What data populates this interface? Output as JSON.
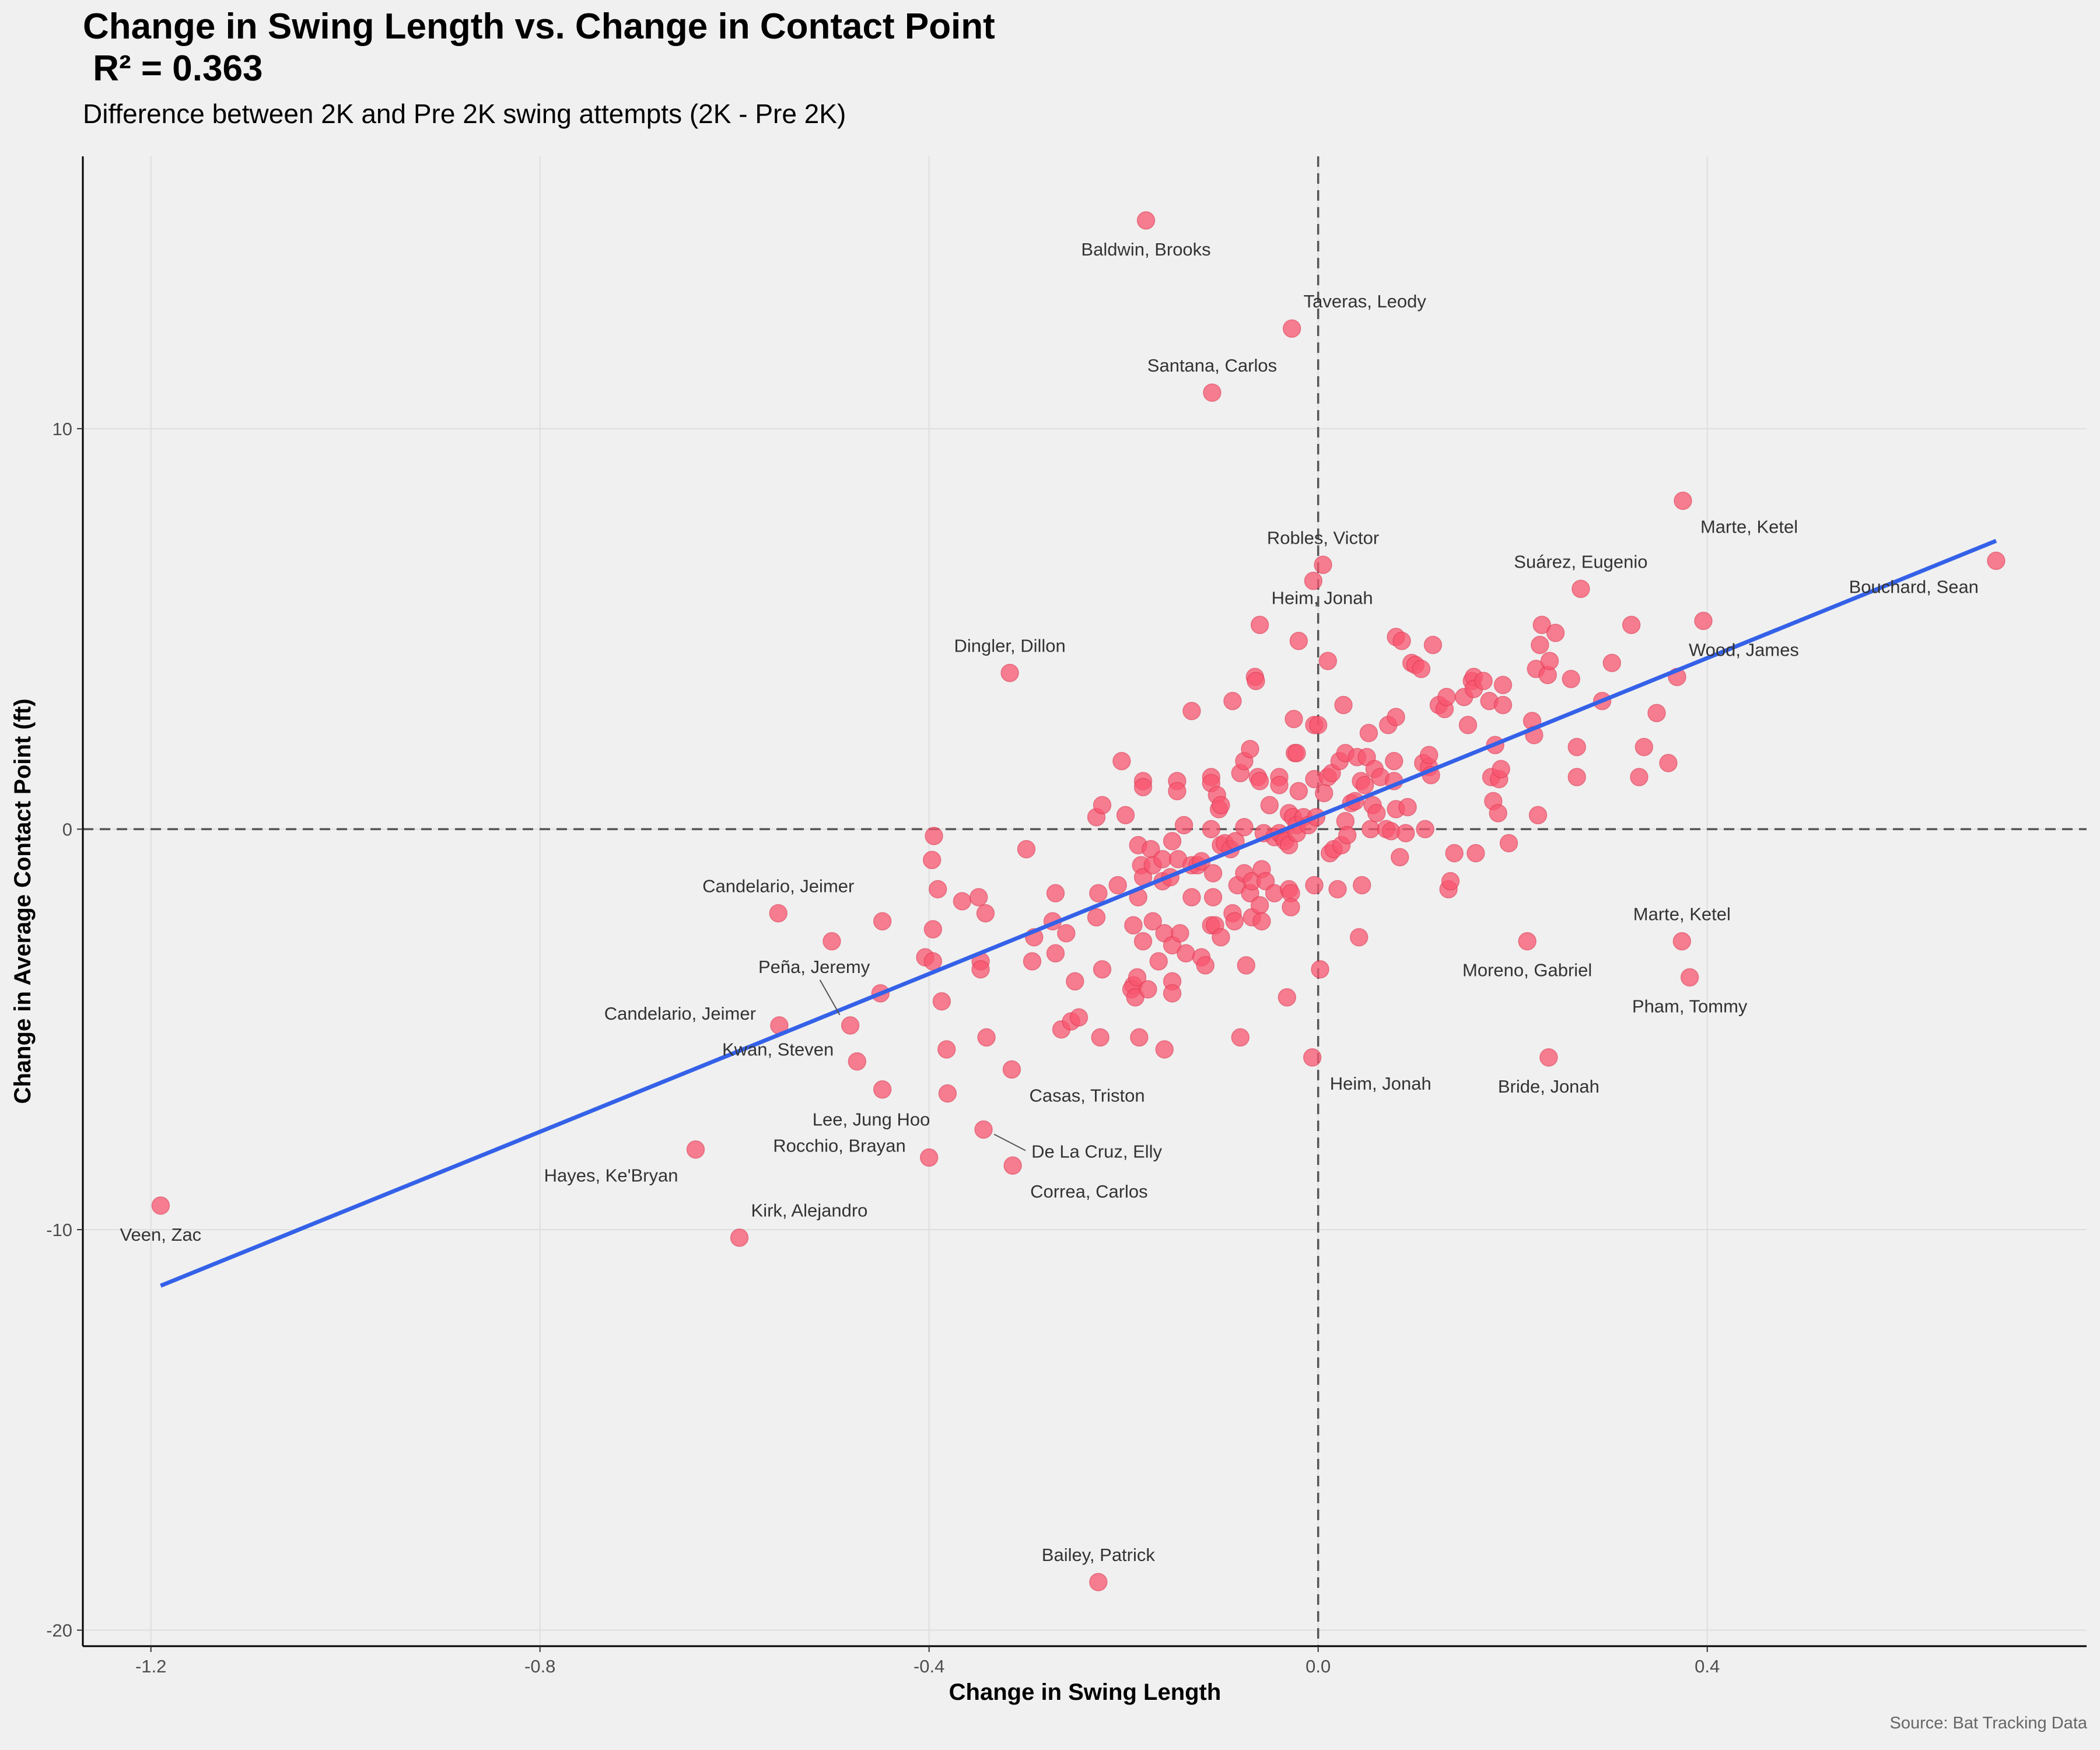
{
  "chart_data": {
    "type": "scatter",
    "title": "Change in Swing Length vs. Change in Contact Point\n R² = 0.363",
    "subtitle": "Difference between 2K and Pre 2K swing attempts (2K - Pre 2K)",
    "xlabel": "Change in Swing Length",
    "ylabel": "Change in Average Contact Point (ft)",
    "caption": "Source: Bat Tracking Data",
    "xlim": [
      -1.27,
      0.79
    ],
    "ylim": [
      -20.4,
      16.8
    ],
    "x_ticks": [
      -1.2,
      -0.8,
      -0.4,
      0.0,
      0.4
    ],
    "x_tick_labels": [
      "-1.2",
      "-0.8",
      "-0.4",
      "0.0",
      "0.4"
    ],
    "y_ticks": [
      -20,
      -10,
      0,
      10
    ],
    "y_tick_labels": [
      "-20",
      "-10",
      "0",
      "10"
    ],
    "reference_lines": {
      "x": 0,
      "y": 0,
      "style": "dashed"
    },
    "trend_line": {
      "x": [
        -1.19,
        0.697
      ],
      "y": [
        -11.4,
        7.2
      ],
      "color": "#3461e8"
    },
    "point_color": "#f8556f",
    "labeled_points": [
      {
        "name": "Baldwin, Brooks",
        "x": -0.177,
        "y": 15.2,
        "anchor": "below"
      },
      {
        "name": "Taveras, Leody",
        "x": -0.027,
        "y": 12.5,
        "anchor": "above-right"
      },
      {
        "name": "Santana, Carlos",
        "x": -0.109,
        "y": 10.9,
        "anchor": "above"
      },
      {
        "name": "Marte, Ketel",
        "x": 0.375,
        "y": 8.2,
        "anchor": "below-right"
      },
      {
        "name": "Robles, Victor",
        "x": 0.005,
        "y": 6.6,
        "anchor": "above"
      },
      {
        "name": "Suárez, Eugenio",
        "x": 0.27,
        "y": 6.0,
        "anchor": "above"
      },
      {
        "name": "Bouchard, Sean",
        "x": 0.697,
        "y": 6.7,
        "anchor": "below-left"
      },
      {
        "name": "Heim, Jonah",
        "x": -0.06,
        "y": 5.1,
        "anchor": "above-right"
      },
      {
        "name": "Wood, James",
        "x": 0.369,
        "y": 3.8,
        "anchor": "above-right"
      },
      {
        "name": "Dingler, Dillon",
        "x": -0.317,
        "y": 3.9,
        "anchor": "above"
      },
      {
        "name": "Candelario, Jeimer",
        "x": -0.555,
        "y": -2.1,
        "anchor": "above"
      },
      {
        "name": "Marte, Ketel",
        "x": 0.374,
        "y": -2.8,
        "anchor": "above"
      },
      {
        "name": "Moreno, Gabriel",
        "x": 0.215,
        "y": -2.8,
        "anchor": "below"
      },
      {
        "name": "Peña, Jeremy",
        "x": -0.481,
        "y": -4.9,
        "anchor": "leader-above-left"
      },
      {
        "name": "Pham, Tommy",
        "x": 0.382,
        "y": -3.7,
        "anchor": "below"
      },
      {
        "name": "Candelario, Jeimer",
        "x": -0.554,
        "y": -4.9,
        "anchor": "left"
      },
      {
        "name": "Kwan, Steven",
        "x": -0.474,
        "y": -5.8,
        "anchor": "left"
      },
      {
        "name": "Bride, Jonah",
        "x": 0.237,
        "y": -5.7,
        "anchor": "below"
      },
      {
        "name": "Heim, Jonah",
        "x": -0.006,
        "y": -5.7,
        "anchor": "below-right"
      },
      {
        "name": "Casas, Triston",
        "x": -0.315,
        "y": -6.0,
        "anchor": "below-right"
      },
      {
        "name": "Lee, Jung Hoo",
        "x": -0.381,
        "y": -6.6,
        "anchor": "below-left"
      },
      {
        "name": "De La Cruz, Elly",
        "x": -0.344,
        "y": -7.5,
        "anchor": "leader-right"
      },
      {
        "name": "Hayes, Ke'Bryan",
        "x": -0.64,
        "y": -8.0,
        "anchor": "below-left"
      },
      {
        "name": "Rocchio, Brayan",
        "x": -0.4,
        "y": -8.2,
        "anchor": "left"
      },
      {
        "name": "Correa, Carlos",
        "x": -0.314,
        "y": -8.4,
        "anchor": "below-right"
      },
      {
        "name": "Veen, Zac",
        "x": -1.19,
        "y": -9.4,
        "anchor": "below"
      },
      {
        "name": "Kirk, Alejandro",
        "x": -0.595,
        "y": -10.2,
        "anchor": "above-right"
      },
      {
        "name": "Bailey, Patrick",
        "x": -0.226,
        "y": -18.8,
        "anchor": "above"
      }
    ],
    "points": [
      {
        "x": -0.395,
        "y": -0.17
      },
      {
        "x": -0.397,
        "y": -0.77
      },
      {
        "x": -0.391,
        "y": -1.5
      },
      {
        "x": -0.366,
        "y": -1.8
      },
      {
        "x": -0.349,
        "y": -1.7
      },
      {
        "x": -0.342,
        "y": -2.1
      },
      {
        "x": -0.396,
        "y": -2.5
      },
      {
        "x": -0.404,
        "y": -3.2
      },
      {
        "x": -0.396,
        "y": -3.3
      },
      {
        "x": -0.347,
        "y": -3.3
      },
      {
        "x": -0.347,
        "y": -3.5
      },
      {
        "x": -0.387,
        "y": -4.3
      },
      {
        "x": -0.382,
        "y": -5.5
      },
      {
        "x": -0.341,
        "y": -5.2
      },
      {
        "x": -0.448,
        "y": -2.3
      },
      {
        "x": -0.5,
        "y": -2.8
      },
      {
        "x": -0.45,
        "y": -4.1
      },
      {
        "x": -0.448,
        "y": -6.5
      },
      {
        "x": -0.3,
        "y": -0.5
      },
      {
        "x": -0.292,
        "y": -2.7
      },
      {
        "x": -0.294,
        "y": -3.3
      },
      {
        "x": -0.27,
        "y": -1.6
      },
      {
        "x": -0.273,
        "y": -2.3
      },
      {
        "x": -0.27,
        "y": -3.1
      },
      {
        "x": -0.259,
        "y": -2.6
      },
      {
        "x": -0.25,
        "y": -3.8
      },
      {
        "x": -0.264,
        "y": -5.0
      },
      {
        "x": -0.254,
        "y": -4.8
      },
      {
        "x": -0.246,
        "y": -4.7
      },
      {
        "x": -0.228,
        "y": 0.3
      },
      {
        "x": -0.222,
        "y": 0.6
      },
      {
        "x": -0.226,
        "y": -1.6
      },
      {
        "x": -0.228,
        "y": -2.2
      },
      {
        "x": -0.222,
        "y": -3.5
      },
      {
        "x": -0.224,
        "y": -5.2
      },
      {
        "x": -0.206,
        "y": -1.4
      },
      {
        "x": -0.198,
        "y": 0.35
      },
      {
        "x": -0.202,
        "y": 1.7
      },
      {
        "x": -0.19,
        "y": -2.4
      },
      {
        "x": -0.19,
        "y": -3.9
      },
      {
        "x": -0.192,
        "y": -4.0
      },
      {
        "x": -0.186,
        "y": -3.7
      },
      {
        "x": -0.188,
        "y": -4.2
      },
      {
        "x": -0.185,
        "y": -0.4
      },
      {
        "x": -0.185,
        "y": -1.7
      },
      {
        "x": -0.184,
        "y": -5.2
      },
      {
        "x": -0.18,
        "y": 1.2
      },
      {
        "x": -0.18,
        "y": 1.05
      },
      {
        "x": -0.182,
        "y": -0.9
      },
      {
        "x": -0.18,
        "y": -1.2
      },
      {
        "x": -0.18,
        "y": -2.8
      },
      {
        "x": -0.172,
        "y": -0.5
      },
      {
        "x": -0.17,
        "y": -0.9
      },
      {
        "x": -0.17,
        "y": -2.3
      },
      {
        "x": -0.175,
        "y": -4.0
      },
      {
        "x": -0.164,
        "y": -3.3
      },
      {
        "x": -0.16,
        "y": -1.3
      },
      {
        "x": -0.16,
        "y": -0.75
      },
      {
        "x": -0.158,
        "y": -2.6
      },
      {
        "x": -0.158,
        "y": -5.5
      },
      {
        "x": -0.15,
        "y": -0.3
      },
      {
        "x": -0.152,
        "y": -1.2
      },
      {
        "x": -0.15,
        "y": -2.9
      },
      {
        "x": -0.15,
        "y": -3.8
      },
      {
        "x": -0.15,
        "y": -4.1
      },
      {
        "x": -0.145,
        "y": 1.2
      },
      {
        "x": -0.145,
        "y": 0.95
      },
      {
        "x": -0.144,
        "y": -0.75
      },
      {
        "x": -0.142,
        "y": -2.6
      },
      {
        "x": -0.138,
        "y": 0.1
      },
      {
        "x": -0.136,
        "y": -3.1
      },
      {
        "x": -0.13,
        "y": 2.95
      },
      {
        "x": -0.13,
        "y": -0.9
      },
      {
        "x": -0.13,
        "y": -1.7
      },
      {
        "x": -0.124,
        "y": -0.9
      },
      {
        "x": -0.12,
        "y": -0.8
      },
      {
        "x": -0.12,
        "y": -3.2
      },
      {
        "x": -0.116,
        "y": -3.4
      },
      {
        "x": -0.11,
        "y": 1.3
      },
      {
        "x": -0.11,
        "y": 1.15
      },
      {
        "x": -0.11,
        "y": 0.0
      },
      {
        "x": -0.108,
        "y": -1.1
      },
      {
        "x": -0.108,
        "y": -1.7
      },
      {
        "x": -0.11,
        "y": -2.4
      },
      {
        "x": -0.106,
        "y": -2.4
      },
      {
        "x": -0.104,
        "y": 0.85
      },
      {
        "x": -0.102,
        "y": 0.5
      },
      {
        "x": -0.1,
        "y": 0.6
      },
      {
        "x": -0.1,
        "y": -0.4
      },
      {
        "x": -0.096,
        "y": -0.35
      },
      {
        "x": -0.1,
        "y": -2.7
      },
      {
        "x": -0.09,
        "y": -0.5
      },
      {
        "x": -0.088,
        "y": 3.2
      },
      {
        "x": -0.088,
        "y": -2.1
      },
      {
        "x": -0.086,
        "y": -2.3
      },
      {
        "x": -0.085,
        "y": -0.3
      },
      {
        "x": -0.083,
        "y": -1.4
      },
      {
        "x": -0.08,
        "y": 1.4
      },
      {
        "x": -0.08,
        "y": -5.2
      },
      {
        "x": -0.076,
        "y": 1.7
      },
      {
        "x": -0.076,
        "y": 0.05
      },
      {
        "x": -0.076,
        "y": -1.1
      },
      {
        "x": -0.074,
        "y": -3.4
      },
      {
        "x": -0.07,
        "y": 2.0
      },
      {
        "x": -0.07,
        "y": -1.6
      },
      {
        "x": -0.068,
        "y": -1.3
      },
      {
        "x": -0.068,
        "y": -2.2
      },
      {
        "x": -0.065,
        "y": 3.8
      },
      {
        "x": -0.064,
        "y": 3.7
      },
      {
        "x": -0.062,
        "y": 1.3
      },
      {
        "x": -0.06,
        "y": 1.2
      },
      {
        "x": -0.06,
        "y": -1.9
      },
      {
        "x": -0.058,
        "y": -1.0
      },
      {
        "x": -0.058,
        "y": -2.3
      },
      {
        "x": -0.056,
        "y": -0.1
      },
      {
        "x": -0.054,
        "y": -1.3
      },
      {
        "x": -0.05,
        "y": 0.6
      },
      {
        "x": -0.045,
        "y": -0.2
      },
      {
        "x": -0.045,
        "y": -1.6
      },
      {
        "x": -0.04,
        "y": 1.3
      },
      {
        "x": -0.04,
        "y": 1.1
      },
      {
        "x": -0.04,
        "y": -0.1
      },
      {
        "x": -0.036,
        "y": -0.2
      },
      {
        "x": -0.034,
        "y": -0.3
      },
      {
        "x": -0.032,
        "y": -4.2
      },
      {
        "x": -0.03,
        "y": 0.4
      },
      {
        "x": -0.03,
        "y": -0.4
      },
      {
        "x": -0.03,
        "y": -1.5
      },
      {
        "x": -0.028,
        "y": -1.6
      },
      {
        "x": -0.028,
        "y": -1.95
      },
      {
        "x": -0.026,
        "y": 0.3
      },
      {
        "x": -0.025,
        "y": 2.75
      },
      {
        "x": -0.024,
        "y": 1.9
      },
      {
        "x": -0.022,
        "y": 1.9
      },
      {
        "x": -0.022,
        "y": 0.1
      },
      {
        "x": -0.022,
        "y": -0.1
      },
      {
        "x": -0.02,
        "y": 4.7
      },
      {
        "x": -0.02,
        "y": 0.95
      },
      {
        "x": -0.015,
        "y": 0.3
      },
      {
        "x": -0.01,
        "y": 0.1
      },
      {
        "x": -0.005,
        "y": 6.2
      },
      {
        "x": -0.004,
        "y": 2.6
      },
      {
        "x": -0.004,
        "y": 1.25
      },
      {
        "x": -0.004,
        "y": -1.4
      },
      {
        "x": -0.002,
        "y": 0.3
      },
      {
        "x": 0.0,
        "y": 2.6
      },
      {
        "x": 0.002,
        "y": -3.5
      },
      {
        "x": 0.006,
        "y": 0.9
      },
      {
        "x": 0.01,
        "y": 4.2
      },
      {
        "x": 0.01,
        "y": 1.3
      },
      {
        "x": 0.012,
        "y": -0.6
      },
      {
        "x": 0.014,
        "y": 1.4
      },
      {
        "x": 0.016,
        "y": -0.5
      },
      {
        "x": 0.02,
        "y": -1.5
      },
      {
        "x": 0.022,
        "y": 1.7
      },
      {
        "x": 0.024,
        "y": -0.4
      },
      {
        "x": 0.026,
        "y": 3.1
      },
      {
        "x": 0.028,
        "y": 1.9
      },
      {
        "x": 0.028,
        "y": 0.2
      },
      {
        "x": 0.03,
        "y": -0.15
      },
      {
        "x": 0.034,
        "y": 0.65
      },
      {
        "x": 0.038,
        "y": 0.7
      },
      {
        "x": 0.04,
        "y": 1.8
      },
      {
        "x": 0.042,
        "y": -2.7
      },
      {
        "x": 0.044,
        "y": 1.2
      },
      {
        "x": 0.045,
        "y": -1.4
      },
      {
        "x": 0.048,
        "y": 1.1
      },
      {
        "x": 0.05,
        "y": 1.8
      },
      {
        "x": 0.052,
        "y": 2.4
      },
      {
        "x": 0.054,
        "y": 0.0
      },
      {
        "x": 0.056,
        "y": 0.6
      },
      {
        "x": 0.058,
        "y": 1.5
      },
      {
        "x": 0.06,
        "y": 0.4
      },
      {
        "x": 0.064,
        "y": 1.3
      },
      {
        "x": 0.07,
        "y": 0.0
      },
      {
        "x": 0.072,
        "y": 2.6
      },
      {
        "x": 0.075,
        "y": -0.05
      },
      {
        "x": 0.078,
        "y": 1.7
      },
      {
        "x": 0.078,
        "y": 1.2
      },
      {
        "x": 0.08,
        "y": 2.8
      },
      {
        "x": 0.08,
        "y": 4.8
      },
      {
        "x": 0.08,
        "y": 0.5
      },
      {
        "x": 0.084,
        "y": -0.7
      },
      {
        "x": 0.086,
        "y": 4.7
      },
      {
        "x": 0.09,
        "y": -0.1
      },
      {
        "x": 0.092,
        "y": 0.55
      },
      {
        "x": 0.096,
        "y": 4.15
      },
      {
        "x": 0.1,
        "y": 4.1
      },
      {
        "x": 0.106,
        "y": 4.0
      },
      {
        "x": 0.108,
        "y": 1.65
      },
      {
        "x": 0.11,
        "y": 0.0
      },
      {
        "x": 0.114,
        "y": 1.55
      },
      {
        "x": 0.114,
        "y": 1.85
      },
      {
        "x": 0.116,
        "y": 1.35
      },
      {
        "x": 0.118,
        "y": 4.6
      },
      {
        "x": 0.124,
        "y": 3.1
      },
      {
        "x": 0.13,
        "y": 3.0
      },
      {
        "x": 0.132,
        "y": 3.3
      },
      {
        "x": 0.134,
        "y": -1.5
      },
      {
        "x": 0.136,
        "y": -1.3
      },
      {
        "x": 0.14,
        "y": -0.6
      },
      {
        "x": 0.15,
        "y": 3.3
      },
      {
        "x": 0.154,
        "y": 2.6
      },
      {
        "x": 0.158,
        "y": 3.7
      },
      {
        "x": 0.16,
        "y": 3.8
      },
      {
        "x": 0.16,
        "y": 3.5
      },
      {
        "x": 0.162,
        "y": -0.6
      },
      {
        "x": 0.17,
        "y": 3.7
      },
      {
        "x": 0.176,
        "y": 3.2
      },
      {
        "x": 0.178,
        "y": 1.3
      },
      {
        "x": 0.18,
        "y": 0.7
      },
      {
        "x": 0.182,
        "y": 2.1
      },
      {
        "x": 0.185,
        "y": 0.4
      },
      {
        "x": 0.186,
        "y": 1.25
      },
      {
        "x": 0.188,
        "y": 1.5
      },
      {
        "x": 0.19,
        "y": 3.1
      },
      {
        "x": 0.19,
        "y": 3.6
      },
      {
        "x": 0.196,
        "y": -0.35
      },
      {
        "x": 0.22,
        "y": 2.7
      },
      {
        "x": 0.222,
        "y": 2.35
      },
      {
        "x": 0.224,
        "y": 4.0
      },
      {
        "x": 0.226,
        "y": 0.35
      },
      {
        "x": 0.228,
        "y": 4.6
      },
      {
        "x": 0.23,
        "y": 5.1
      },
      {
        "x": 0.236,
        "y": 3.85
      },
      {
        "x": 0.238,
        "y": 4.2
      },
      {
        "x": 0.244,
        "y": 4.9
      },
      {
        "x": 0.26,
        "y": 3.75
      },
      {
        "x": 0.266,
        "y": 2.05
      },
      {
        "x": 0.266,
        "y": 1.3
      },
      {
        "x": 0.292,
        "y": 3.2
      },
      {
        "x": 0.302,
        "y": 4.15
      },
      {
        "x": 0.322,
        "y": 5.1
      },
      {
        "x": 0.33,
        "y": 1.3
      },
      {
        "x": 0.335,
        "y": 2.05
      },
      {
        "x": 0.348,
        "y": 2.9
      },
      {
        "x": 0.36,
        "y": 1.65
      },
      {
        "x": 0.396,
        "y": 5.2
      }
    ]
  }
}
